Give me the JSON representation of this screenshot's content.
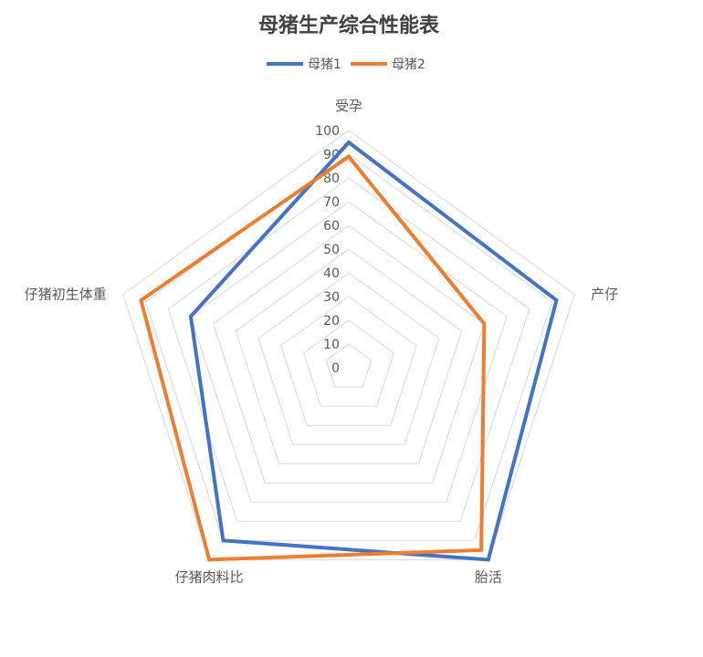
{
  "chart_data": {
    "type": "radar",
    "title": "母猪生产综合性能表",
    "categories": [
      "受孕",
      "产仔",
      "胎活",
      "仔猪肉料比",
      "仔猪初生体重"
    ],
    "ticks": [
      "0",
      "10",
      "20",
      "30",
      "40",
      "50",
      "60",
      "70",
      "80",
      "90",
      "100"
    ],
    "rlim": [
      0,
      100
    ],
    "legend_position": "top",
    "grid": true,
    "series": [
      {
        "name": "母猪1",
        "color": "#4472C4",
        "values": [
          95,
          92,
          100,
          90,
          70
        ]
      },
      {
        "name": "母猪2",
        "color": "#ED7D31",
        "values": [
          89,
          60,
          95,
          100,
          92
        ]
      }
    ]
  }
}
